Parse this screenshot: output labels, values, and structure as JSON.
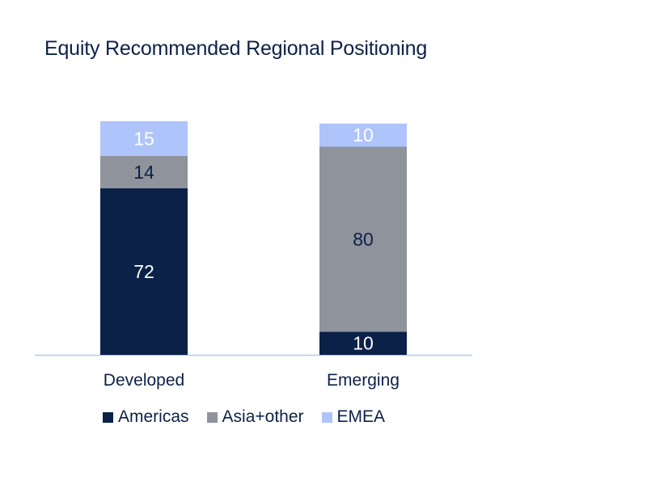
{
  "chart_data": {
    "type": "bar",
    "stacked": true,
    "title": "Equity Recommended Regional Positioning",
    "categories": [
      "Developed",
      "Emerging"
    ],
    "series": [
      {
        "name": "Americas",
        "values": [
          72,
          10
        ],
        "color": "#0b2148",
        "label_color": "#ffffff"
      },
      {
        "name": "Asia+other",
        "values": [
          14,
          80
        ],
        "color": "#8f939c",
        "label_color": "#0b2148"
      },
      {
        "name": "EMEA",
        "values": [
          15,
          10
        ],
        "color": "#aec4fb",
        "label_color": "#ffffff"
      }
    ],
    "ylim": [
      0,
      101
    ],
    "grid": false,
    "legend_position": "bottom"
  }
}
